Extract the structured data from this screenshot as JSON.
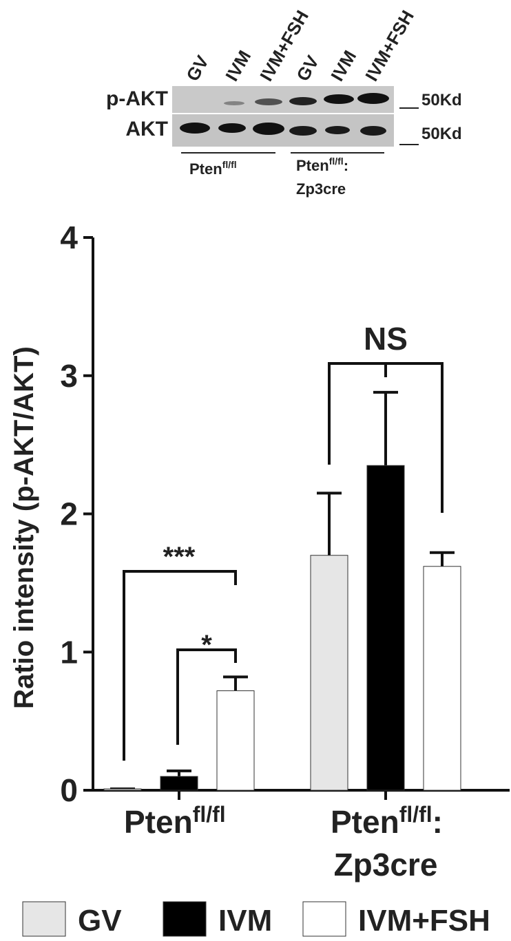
{
  "blot": {
    "lanes": [
      "GV",
      "IVM",
      "IVM+FSH",
      "GV",
      "IVM",
      "IVM+FSH"
    ],
    "rows": [
      "p-AKT",
      "AKT"
    ],
    "markers": [
      "50Kd",
      "50Kd"
    ],
    "groups": [
      {
        "text": "Pten",
        "sup": "fl/fl"
      },
      {
        "text": "Pten",
        "sup": "fl/fl",
        "after": ":",
        "line2": "Zp3cre"
      }
    ]
  },
  "chart_data": {
    "type": "bar",
    "ylabel": "Ratio intensity (p-AKT/AKT)",
    "categories": [
      {
        "text": "Pten",
        "sup": "fl/fl"
      },
      {
        "text": "Pten",
        "sup": "fl/fl",
        "after": ":",
        "line2": "Zp3cre"
      }
    ],
    "series": [
      {
        "name": "GV",
        "color": "#e6e6e6",
        "values": [
          0.01,
          1.7
        ],
        "errors": [
          0,
          0.45
        ]
      },
      {
        "name": "IVM",
        "color": "#000000",
        "values": [
          0.1,
          2.35
        ],
        "errors": [
          0.04,
          0.53
        ]
      },
      {
        "name": "IVM+FSH",
        "color": "#ffffff",
        "values": [
          0.72,
          1.62
        ],
        "errors": [
          0.1,
          0.1
        ]
      }
    ],
    "ylim": [
      0,
      4
    ],
    "yticks": [
      0,
      1,
      2,
      3,
      4
    ],
    "annotations": [
      "***",
      "*",
      "NS"
    ]
  }
}
